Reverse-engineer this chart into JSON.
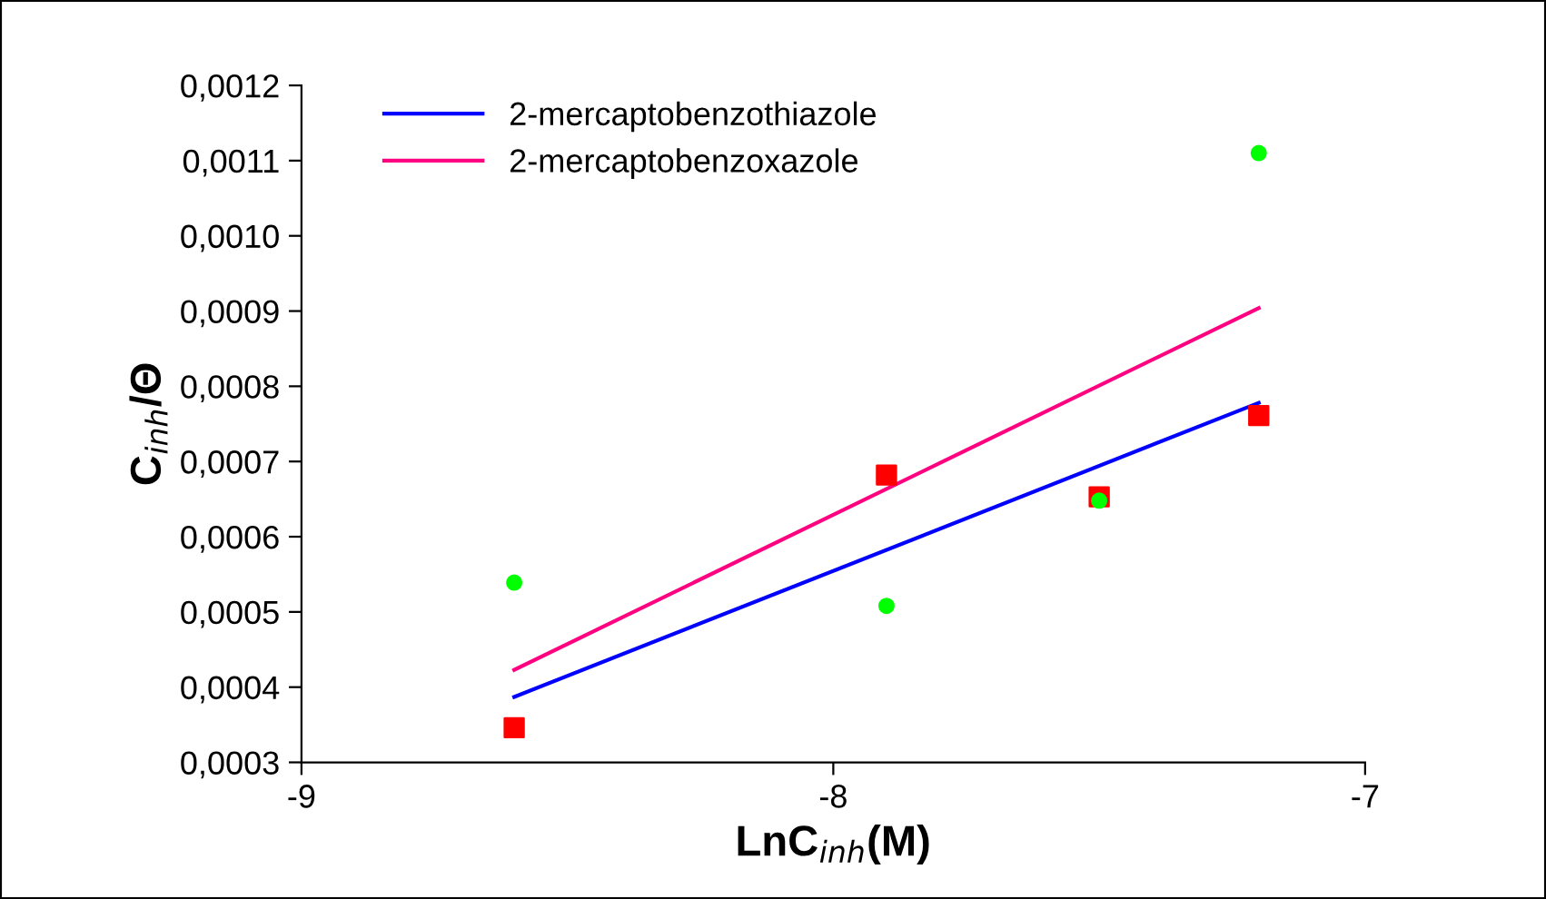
{
  "chart_data": {
    "type": "line",
    "xlabel": "LnC$_{inh}$(M)",
    "ylabel": "C$_{inh}$/Θ",
    "xlim": [
      -9,
      -7
    ],
    "xticks": [
      {
        "value": -9,
        "label": "-9"
      },
      {
        "value": -8,
        "label": "-8"
      },
      {
        "value": -7,
        "label": "-7"
      }
    ],
    "ylim": [
      0.0003,
      0.0012
    ],
    "yticks": [
      {
        "value": 0.0003,
        "label": "0,0003"
      },
      {
        "value": 0.0004,
        "label": "0,0004"
      },
      {
        "value": 0.0005,
        "label": "0,0005"
      },
      {
        "value": 0.0006,
        "label": "0,0006"
      },
      {
        "value": 0.0007,
        "label": "0,0007"
      },
      {
        "value": 0.0008,
        "label": "0,0008"
      },
      {
        "value": 0.0009,
        "label": "0,0009"
      },
      {
        "value": 0.001,
        "label": "0,0010"
      },
      {
        "value": 0.0011,
        "label": "0,0011"
      },
      {
        "value": 0.0012,
        "label": "0,0012"
      }
    ],
    "grid": false,
    "legend": "top left",
    "series": [
      {
        "name": "2-mercaptobenzothiazole",
        "color": "#0000ff",
        "x": [
          -8.6,
          -7.2
        ],
        "values": [
          0.000387,
          0.000778
        ]
      },
      {
        "name": "2-mercaptobenzoxazole",
        "color": "#ff0080",
        "x": [
          -8.6,
          -7.2
        ],
        "values": [
          0.000423,
          0.000904
        ]
      },
      {
        "type": "scatter",
        "marker": "square",
        "color": "#ff0000",
        "x": [
          -8.6,
          -7.9,
          -7.5,
          -7.2
        ],
        "values": [
          0.000346,
          0.000682,
          0.000653,
          0.000761
        ]
      },
      {
        "type": "scatter",
        "marker": "circle",
        "color": "#00ff00",
        "x": [
          -8.6,
          -7.9,
          -7.5,
          -7.2
        ],
        "values": [
          0.000539,
          0.000508,
          0.000648,
          0.00111
        ]
      }
    ]
  }
}
